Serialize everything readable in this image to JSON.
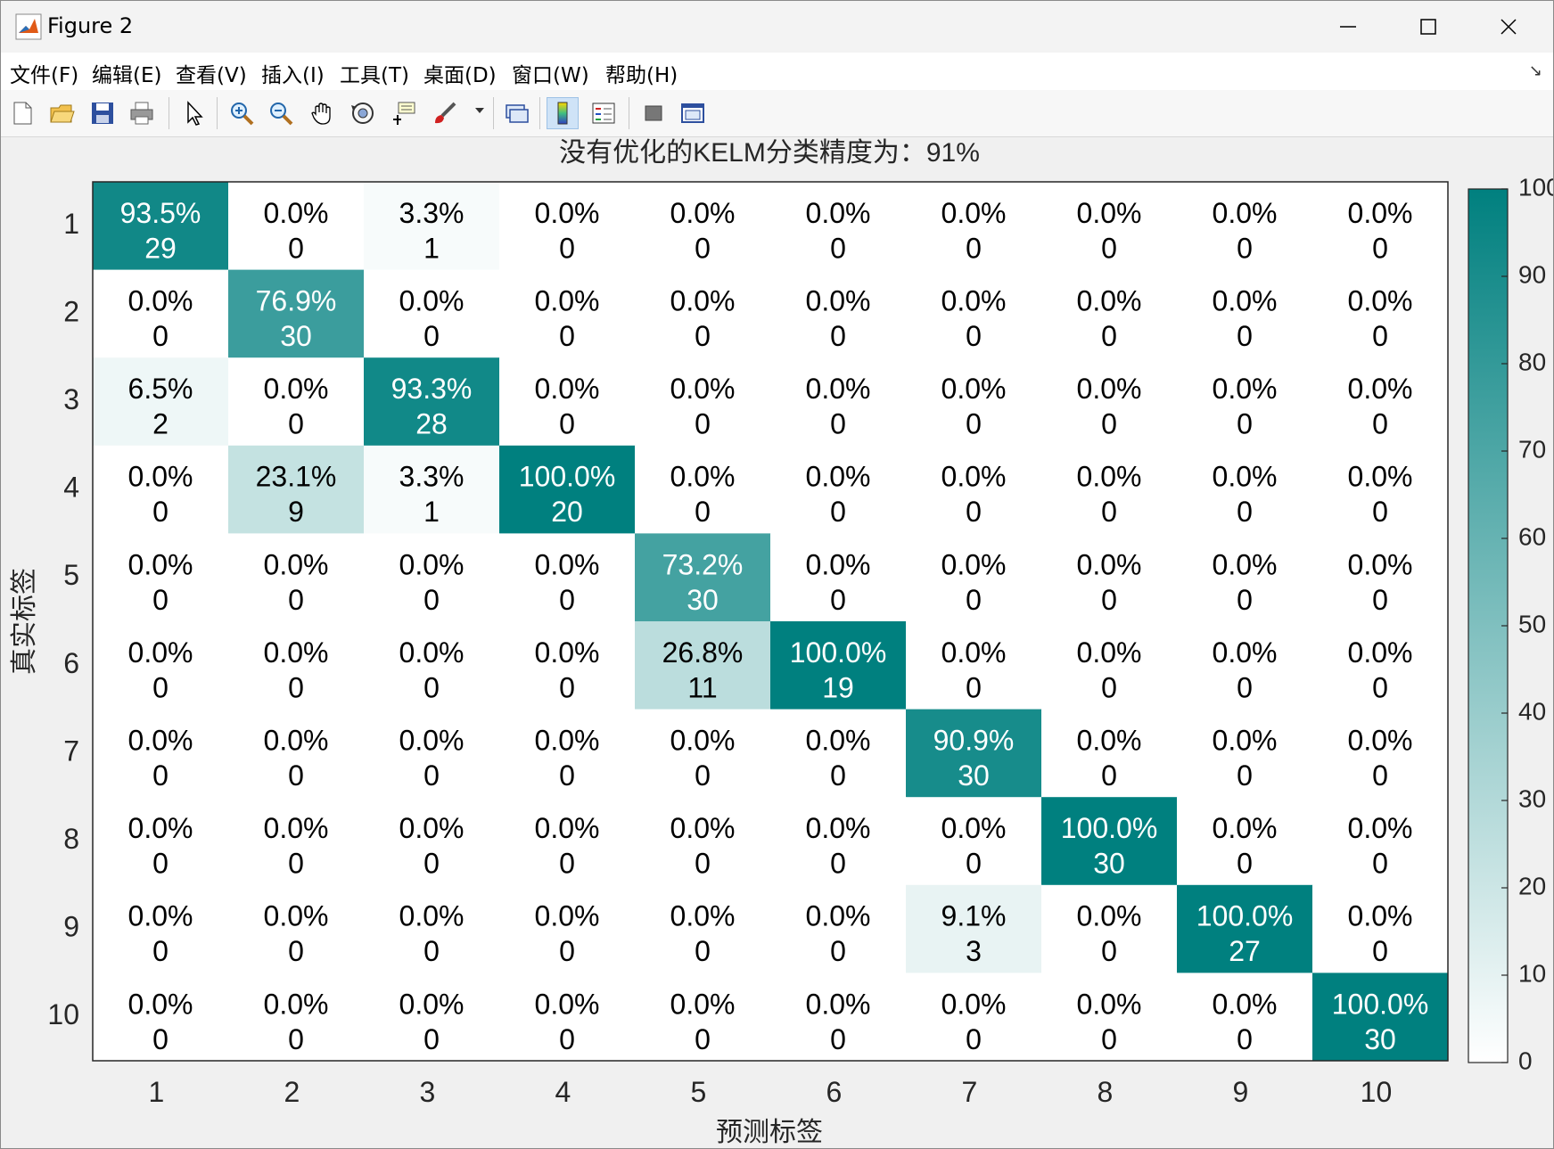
{
  "window": {
    "title": "Figure 2",
    "buttons": [
      "minimize",
      "maximize",
      "close"
    ]
  },
  "menu": [
    {
      "label": "文件(F)"
    },
    {
      "label": "编辑(E)"
    },
    {
      "label": "查看(V)"
    },
    {
      "label": "插入(I)"
    },
    {
      "label": "工具(T)"
    },
    {
      "label": "桌面(D)"
    },
    {
      "label": "窗口(W)"
    },
    {
      "label": "帮助(H)"
    }
  ],
  "toolbar": {
    "icons": [
      "new-figure-icon",
      "open-file-icon",
      "save-icon",
      "print-icon",
      "pointer-icon",
      "zoom-in-icon",
      "zoom-out-icon",
      "pan-icon",
      "rotate-3d-icon",
      "data-cursor-icon",
      "brush-icon",
      "link-plot-icon",
      "colorbar-icon",
      "legend-icon",
      "hide-plot-tools-icon",
      "show-plot-tools-icon"
    ]
  },
  "chart_data": {
    "type": "heatmap",
    "title": "没有优化的KELM分类精度为：91%",
    "xlabel": "预测标签",
    "ylabel": "真实标签",
    "x": [
      "1",
      "2",
      "3",
      "4",
      "5",
      "6",
      "7",
      "8",
      "9",
      "10"
    ],
    "y": [
      "1",
      "2",
      "3",
      "4",
      "5",
      "6",
      "7",
      "8",
      "9",
      "10"
    ],
    "counts": [
      [
        29,
        0,
        1,
        0,
        0,
        0,
        0,
        0,
        0,
        0
      ],
      [
        0,
        30,
        0,
        0,
        0,
        0,
        0,
        0,
        0,
        0
      ],
      [
        2,
        0,
        28,
        0,
        0,
        0,
        0,
        0,
        0,
        0
      ],
      [
        0,
        9,
        1,
        20,
        0,
        0,
        0,
        0,
        0,
        0
      ],
      [
        0,
        0,
        0,
        0,
        30,
        0,
        0,
        0,
        0,
        0
      ],
      [
        0,
        0,
        0,
        0,
        11,
        19,
        0,
        0,
        0,
        0
      ],
      [
        0,
        0,
        0,
        0,
        0,
        0,
        30,
        0,
        0,
        0
      ],
      [
        0,
        0,
        0,
        0,
        0,
        0,
        0,
        30,
        0,
        0
      ],
      [
        0,
        0,
        0,
        0,
        0,
        0,
        3,
        0,
        27,
        0
      ],
      [
        0,
        0,
        0,
        0,
        0,
        0,
        0,
        0,
        0,
        30
      ]
    ],
    "percents": [
      [
        "93.5%",
        "0.0%",
        "3.3%",
        "0.0%",
        "0.0%",
        "0.0%",
        "0.0%",
        "0.0%",
        "0.0%",
        "0.0%"
      ],
      [
        "0.0%",
        "76.9%",
        "0.0%",
        "0.0%",
        "0.0%",
        "0.0%",
        "0.0%",
        "0.0%",
        "0.0%",
        "0.0%"
      ],
      [
        "6.5%",
        "0.0%",
        "93.3%",
        "0.0%",
        "0.0%",
        "0.0%",
        "0.0%",
        "0.0%",
        "0.0%",
        "0.0%"
      ],
      [
        "0.0%",
        "23.1%",
        "3.3%",
        "100.0%",
        "0.0%",
        "0.0%",
        "0.0%",
        "0.0%",
        "0.0%",
        "0.0%"
      ],
      [
        "0.0%",
        "0.0%",
        "0.0%",
        "0.0%",
        "73.2%",
        "0.0%",
        "0.0%",
        "0.0%",
        "0.0%",
        "0.0%"
      ],
      [
        "0.0%",
        "0.0%",
        "0.0%",
        "0.0%",
        "26.8%",
        "100.0%",
        "0.0%",
        "0.0%",
        "0.0%",
        "0.0%"
      ],
      [
        "0.0%",
        "0.0%",
        "0.0%",
        "0.0%",
        "0.0%",
        "0.0%",
        "90.9%",
        "0.0%",
        "0.0%",
        "0.0%"
      ],
      [
        "0.0%",
        "0.0%",
        "0.0%",
        "0.0%",
        "0.0%",
        "0.0%",
        "0.0%",
        "100.0%",
        "0.0%",
        "0.0%"
      ],
      [
        "0.0%",
        "0.0%",
        "0.0%",
        "0.0%",
        "0.0%",
        "0.0%",
        "9.1%",
        "0.0%",
        "100.0%",
        "0.0%"
      ],
      [
        "0.0%",
        "0.0%",
        "0.0%",
        "0.0%",
        "0.0%",
        "0.0%",
        "0.0%",
        "0.0%",
        "0.0%",
        "100.0%"
      ]
    ],
    "colorbar": {
      "range": [
        0,
        100
      ],
      "ticks": [
        "0",
        "10",
        "20",
        "30",
        "40",
        "50",
        "60",
        "70",
        "80",
        "90",
        "100"
      ],
      "color_low": "#ffffff",
      "color_high": "#00807f"
    }
  }
}
